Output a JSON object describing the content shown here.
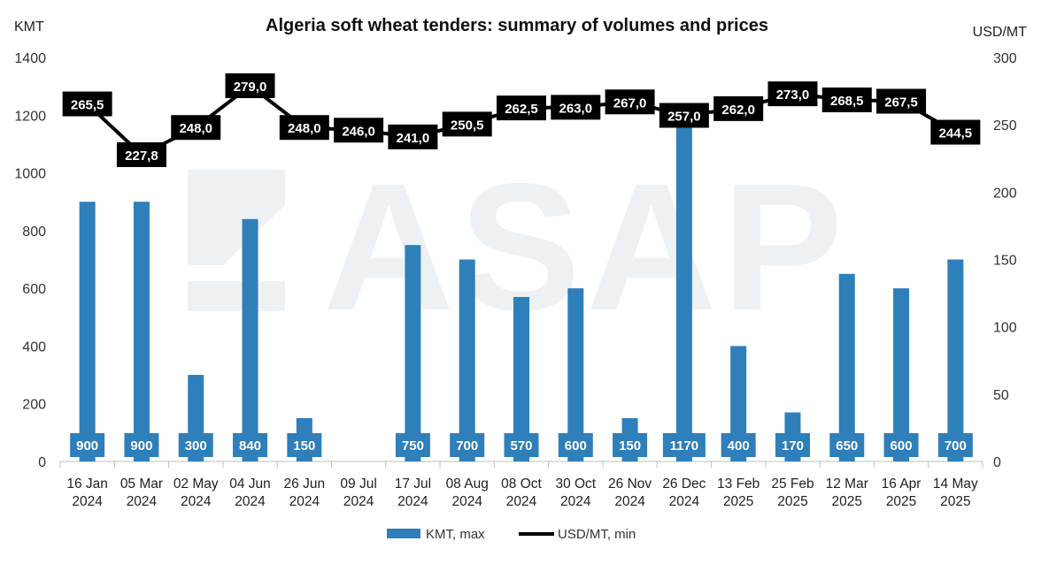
{
  "chart_data": {
    "type": "bar",
    "title": "Algeria soft wheat tenders: summary of volumes and prices",
    "left_unit": "KMT",
    "right_unit": "USD/MT",
    "watermark": "ASAP",
    "categories": [
      [
        "16 Jan",
        "2024"
      ],
      [
        "05 Mar",
        "2024"
      ],
      [
        "02 May",
        "2024"
      ],
      [
        "04 Jun",
        "2024"
      ],
      [
        "26 Jun",
        "2024"
      ],
      [
        "09 Jul",
        "2024"
      ],
      [
        "17 Jul",
        "2024"
      ],
      [
        "08 Aug",
        "2024"
      ],
      [
        "08 Oct",
        "2024"
      ],
      [
        "30 Oct",
        "2024"
      ],
      [
        "26 Nov",
        "2024"
      ],
      [
        "26 Dec",
        "2024"
      ],
      [
        "13 Feb",
        "2025"
      ],
      [
        "25 Feb",
        "2025"
      ],
      [
        "12 Mar",
        "2025"
      ],
      [
        "16 Apr",
        "2025"
      ],
      [
        "14 May",
        "2025"
      ]
    ],
    "series": [
      {
        "name": "KMT, max",
        "type": "bar",
        "axis": "left",
        "color": "#2e7fba",
        "values": [
          900,
          900,
          300,
          840,
          150,
          null,
          750,
          700,
          570,
          600,
          150,
          1170,
          400,
          170,
          650,
          600,
          700
        ],
        "labels": [
          "900",
          "900",
          "300",
          "840",
          "150",
          "",
          "750",
          "700",
          "570",
          "600",
          "150",
          "1170",
          "400",
          "170",
          "650",
          "600",
          "700"
        ]
      },
      {
        "name": "USD/MT, min",
        "type": "line",
        "axis": "right",
        "color": "#000000",
        "values": [
          265.5,
          227.8,
          248.0,
          279.0,
          248.0,
          246.0,
          241.0,
          250.5,
          262.5,
          263.0,
          267.0,
          257.0,
          262.0,
          273.0,
          268.5,
          267.5,
          244.5
        ],
        "labels": [
          "265,5",
          "227,8",
          "248,0",
          "279,0",
          "248,0",
          "246,0",
          "241,0",
          "250,5",
          "262,5",
          "263,0",
          "267,0",
          "257,0",
          "262,0",
          "273,0",
          "268,5",
          "267,5",
          "244,5"
        ]
      }
    ],
    "y_left": {
      "min": 0,
      "max": 1400,
      "ticks": [
        "0",
        "200",
        "400",
        "600",
        "800",
        "1000",
        "1200",
        "1400"
      ]
    },
    "y_right": {
      "min": 0,
      "max": 300,
      "ticks": [
        "0",
        "50",
        "100",
        "150",
        "200",
        "250",
        "300"
      ]
    },
    "legend_position": "bottom",
    "grid": false
  }
}
